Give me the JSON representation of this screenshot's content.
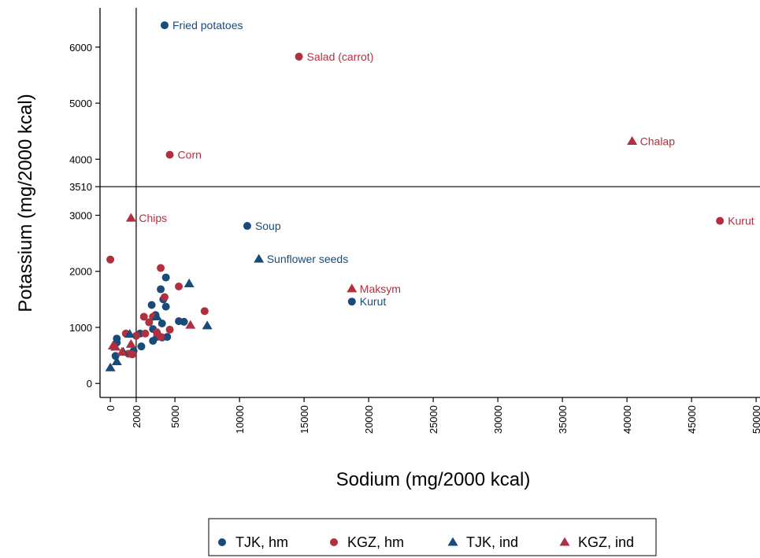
{
  "chart_data": {
    "type": "scatter",
    "xlabel": "Sodium (mg/2000 kcal)",
    "ylabel": "Potassium (mg/2000 kcal)",
    "xlim": [
      -800,
      50300
    ],
    "ylim": [
      -250,
      6700
    ],
    "x_ticks": [
      0,
      2000,
      5000,
      10000,
      15000,
      20000,
      25000,
      30000,
      35000,
      40000,
      45000,
      50000
    ],
    "x_tick_labels": [
      "0",
      "2000",
      "5000",
      "10000",
      "15000",
      "20000",
      "25000",
      "30000",
      "35000",
      "40000",
      "45000",
      "50000"
    ],
    "y_ticks": [
      0,
      1000,
      2000,
      3000,
      3510,
      4000,
      5000,
      6000
    ],
    "y_tick_labels": [
      "0",
      "1000",
      "2000",
      "3000",
      "3510",
      "4000",
      "5000",
      "6000"
    ],
    "reference_lines": {
      "x": 2000,
      "y": 3510
    },
    "grid": false,
    "legend_position": "bottom",
    "series": [
      {
        "name": "TJK, hm",
        "marker": "circle",
        "color": "#1a4a7a",
        "points": [
          [
            4200,
            6390,
            "Fried potatoes"
          ],
          [
            10600,
            2810,
            "Soup"
          ],
          [
            18700,
            1460,
            "Kurut"
          ],
          [
            500,
            800
          ],
          [
            500,
            730
          ],
          [
            400,
            490
          ],
          [
            1800,
            580
          ],
          [
            2300,
            890
          ],
          [
            2400,
            660
          ],
          [
            3200,
            1400
          ],
          [
            3300,
            970
          ],
          [
            3300,
            760
          ],
          [
            3500,
            1220
          ],
          [
            3900,
            1680
          ],
          [
            4000,
            1070
          ],
          [
            4000,
            820
          ],
          [
            4100,
            1500
          ],
          [
            4300,
            1890
          ],
          [
            4300,
            1370
          ],
          [
            4400,
            830
          ],
          [
            5300,
            1110
          ],
          [
            5700,
            1100
          ],
          [
            3600,
            830
          ]
        ]
      },
      {
        "name": "KGZ, hm",
        "marker": "circle",
        "color": "#b03040",
        "points": [
          [
            14600,
            5830,
            "Salad (carrot)"
          ],
          [
            4600,
            4080,
            "Corn"
          ],
          [
            47200,
            2900,
            "Kurut"
          ],
          [
            0,
            2210
          ],
          [
            1200,
            890
          ],
          [
            1400,
            530
          ],
          [
            1700,
            520
          ],
          [
            2000,
            850
          ],
          [
            2600,
            1190
          ],
          [
            2700,
            890
          ],
          [
            3000,
            1090
          ],
          [
            3300,
            1190
          ],
          [
            3600,
            910
          ],
          [
            3900,
            2060
          ],
          [
            3900,
            830
          ],
          [
            4200,
            1540
          ],
          [
            4600,
            960
          ],
          [
            5300,
            1730
          ],
          [
            7300,
            1290
          ]
        ]
      },
      {
        "name": "TJK, ind",
        "marker": "triangle",
        "color": "#1a4a7a",
        "points": [
          [
            11500,
            2220,
            "Sunflower seeds"
          ],
          [
            0,
            280
          ],
          [
            500,
            390
          ],
          [
            1000,
            560
          ],
          [
            1500,
            880
          ],
          [
            3600,
            1190
          ],
          [
            6100,
            1780
          ],
          [
            7500,
            1030
          ]
        ]
      },
      {
        "name": "KGZ, ind",
        "marker": "triangle",
        "color": "#b03040",
        "points": [
          [
            1600,
            2950,
            "Chips"
          ],
          [
            40400,
            4320,
            "Chalap"
          ],
          [
            18700,
            1690,
            "Maksym"
          ],
          [
            200,
            670
          ],
          [
            400,
            650
          ],
          [
            900,
            560
          ],
          [
            1600,
            700
          ],
          [
            3700,
            900
          ],
          [
            6200,
            1040
          ]
        ]
      }
    ]
  }
}
